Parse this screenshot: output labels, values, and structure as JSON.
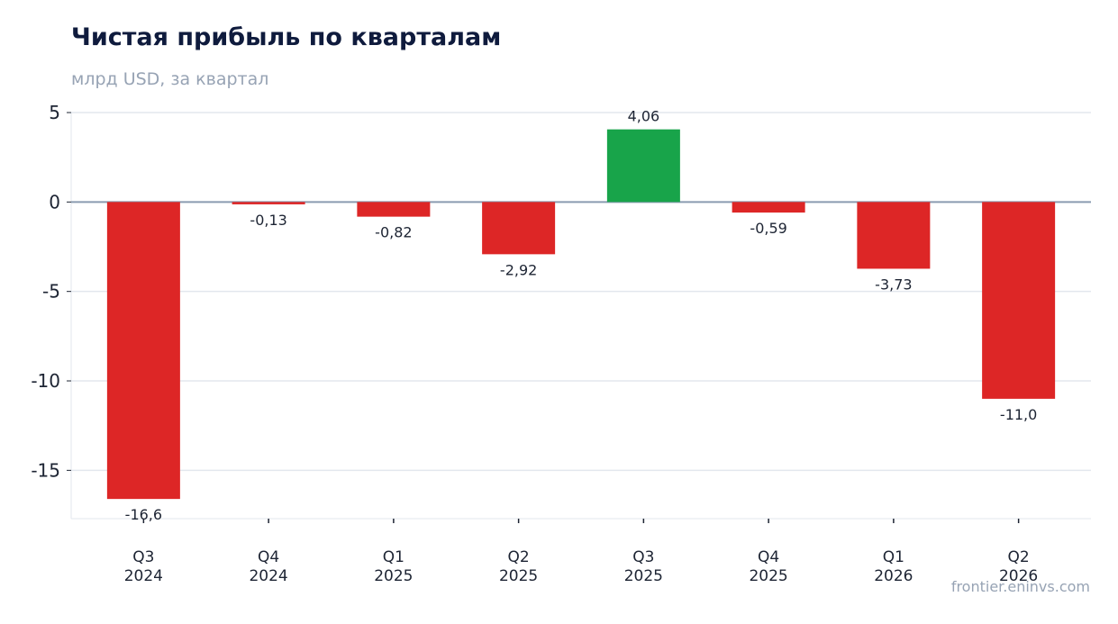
{
  "chart_data": {
    "type": "bar",
    "title": "Чистая прибыль по кварталам",
    "subtitle": "млрд USD, за квартал",
    "categories": [
      [
        "Q3",
        "2024"
      ],
      [
        "Q4",
        "2024"
      ],
      [
        "Q1",
        "2025"
      ],
      [
        "Q2",
        "2025"
      ],
      [
        "Q3",
        "2025"
      ],
      [
        "Q4",
        "2025"
      ],
      [
        "Q1",
        "2026"
      ],
      [
        "Q2",
        "2026"
      ]
    ],
    "values": [
      -16.6,
      -0.13,
      -0.82,
      -2.92,
      4.06,
      -0.59,
      -3.73,
      -11.0
    ],
    "data_labels": [
      "-16,6",
      "-0,13",
      "-0,82",
      "-2,92",
      "4,06",
      "-0,59",
      "-3,73",
      "-11,0"
    ],
    "yticks": [
      5,
      0,
      -5,
      -10,
      -15
    ],
    "ytick_labels": [
      "5",
      "0",
      "-5",
      "-10",
      "-15"
    ],
    "ylim": [
      -17.7,
      5.0
    ],
    "xlabel": "",
    "ylabel": "",
    "grid": true,
    "legend": "none",
    "colors": {
      "positive": "#18a44a",
      "negative": "#dd2626",
      "zero_line": "#8a9bb0",
      "grid": "#e3e7ee"
    }
  },
  "watermark": "frontier.eninvs.com"
}
